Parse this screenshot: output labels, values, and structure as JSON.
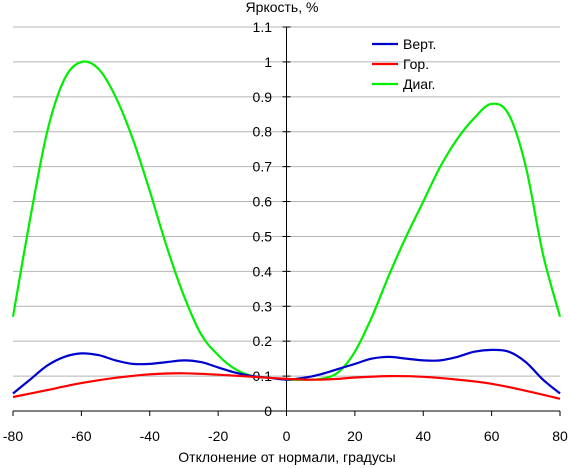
{
  "chart_data": {
    "type": "line",
    "title": "Яркость, %",
    "xlabel": "Отклонение от нормали, градусы",
    "ylabel": "",
    "xlim": [
      -80,
      80
    ],
    "ylim": [
      0,
      1.1
    ],
    "x_ticks": [
      -80,
      -60,
      -40,
      -20,
      0,
      20,
      40,
      60,
      80
    ],
    "y_ticks": [
      0,
      0.1,
      0.2,
      0.3,
      0.4,
      0.5,
      0.6,
      0.7,
      0.8,
      0.9,
      1,
      1.1
    ],
    "grid": "horizontal",
    "legend_position": "top-right",
    "series": [
      {
        "name": "Верт.",
        "color": "#0000cc",
        "points": [
          [
            -80,
            0.05
          ],
          [
            -75,
            0.09
          ],
          [
            -70,
            0.13
          ],
          [
            -65,
            0.155
          ],
          [
            -60,
            0.165
          ],
          [
            -55,
            0.16
          ],
          [
            -50,
            0.145
          ],
          [
            -45,
            0.135
          ],
          [
            -40,
            0.135
          ],
          [
            -35,
            0.14
          ],
          [
            -30,
            0.145
          ],
          [
            -25,
            0.14
          ],
          [
            -20,
            0.125
          ],
          [
            -15,
            0.11
          ],
          [
            -10,
            0.1
          ],
          [
            -5,
            0.095
          ],
          [
            0,
            0.09
          ],
          [
            5,
            0.095
          ],
          [
            10,
            0.105
          ],
          [
            15,
            0.12
          ],
          [
            20,
            0.135
          ],
          [
            25,
            0.15
          ],
          [
            30,
            0.155
          ],
          [
            35,
            0.15
          ],
          [
            40,
            0.145
          ],
          [
            45,
            0.145
          ],
          [
            50,
            0.155
          ],
          [
            55,
            0.17
          ],
          [
            60,
            0.175
          ],
          [
            65,
            0.17
          ],
          [
            70,
            0.14
          ],
          [
            75,
            0.09
          ],
          [
            80,
            0.05
          ]
        ]
      },
      {
        "name": "Гор.",
        "color": "#ff0000",
        "points": [
          [
            -80,
            0.04
          ],
          [
            -70,
            0.06
          ],
          [
            -60,
            0.08
          ],
          [
            -50,
            0.095
          ],
          [
            -40,
            0.105
          ],
          [
            -30,
            0.108
          ],
          [
            -20,
            0.104
          ],
          [
            -10,
            0.098
          ],
          [
            0,
            0.092
          ],
          [
            5,
            0.09
          ],
          [
            10,
            0.09
          ],
          [
            15,
            0.092
          ],
          [
            20,
            0.096
          ],
          [
            30,
            0.1
          ],
          [
            40,
            0.098
          ],
          [
            50,
            0.09
          ],
          [
            60,
            0.078
          ],
          [
            70,
            0.058
          ],
          [
            80,
            0.035
          ]
        ]
      },
      {
        "name": "Диаг.",
        "color": "#00ee00",
        "points": [
          [
            -80,
            0.27
          ],
          [
            -75,
            0.55
          ],
          [
            -70,
            0.8
          ],
          [
            -65,
            0.95
          ],
          [
            -60,
            1.0
          ],
          [
            -55,
            0.98
          ],
          [
            -50,
            0.9
          ],
          [
            -45,
            0.78
          ],
          [
            -40,
            0.63
          ],
          [
            -35,
            0.47
          ],
          [
            -30,
            0.33
          ],
          [
            -25,
            0.22
          ],
          [
            -20,
            0.16
          ],
          [
            -15,
            0.12
          ],
          [
            -10,
            0.1
          ],
          [
            -5,
            0.095
          ],
          [
            0,
            0.09
          ],
          [
            5,
            0.09
          ],
          [
            10,
            0.092
          ],
          [
            15,
            0.11
          ],
          [
            20,
            0.17
          ],
          [
            25,
            0.27
          ],
          [
            30,
            0.39
          ],
          [
            35,
            0.5
          ],
          [
            40,
            0.6
          ],
          [
            45,
            0.7
          ],
          [
            50,
            0.78
          ],
          [
            55,
            0.84
          ],
          [
            60,
            0.88
          ],
          [
            65,
            0.85
          ],
          [
            70,
            0.7
          ],
          [
            75,
            0.45
          ],
          [
            80,
            0.27
          ]
        ]
      }
    ]
  }
}
